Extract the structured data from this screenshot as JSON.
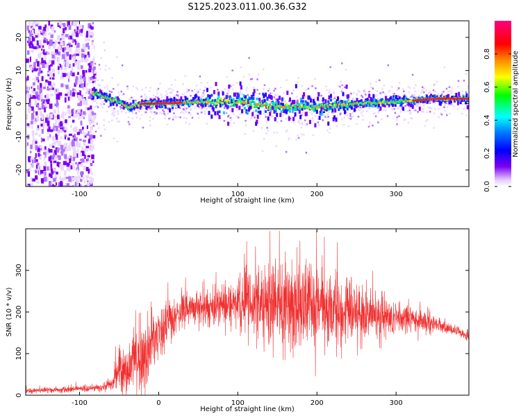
{
  "figure": {
    "title": "S125.2023.011.00.36.G32"
  },
  "chart_data": [
    {
      "type": "heatmap",
      "xlabel": "Height of straight line (km)",
      "ylabel": "Frequency (Hz)",
      "xlim": [
        -168,
        392
      ],
      "ylim": [
        -25,
        25
      ],
      "xticks": [
        -100,
        0,
        100,
        200,
        300
      ],
      "yticks": [
        -20,
        -10,
        0,
        10,
        20
      ],
      "ridge_frequency_hz": {
        "x": [
          -80,
          -70,
          -60,
          -50,
          -40,
          -30,
          -20,
          0,
          50,
          100,
          150,
          200,
          250,
          300,
          350,
          390
        ],
        "y": [
          3,
          2,
          1,
          0.5,
          -1,
          -0.5,
          0,
          0,
          0.5,
          0.5,
          -1,
          -1,
          0,
          0.5,
          1.5,
          1.5
        ]
      },
      "colorbar": {
        "label": "Normalized spectral amplitude",
        "range": [
          0,
          1
        ],
        "ticks": [
          0.0,
          0.2,
          0.4,
          0.6,
          0.8
        ],
        "tick_labels": [
          "0.0",
          "0.2",
          "0.4",
          "0.6",
          "0.8"
        ],
        "colormap": [
          "#f4e8ff",
          "#7a00f0",
          "#0000ff",
          "#00ffff",
          "#00ff00",
          "#ffff00",
          "#ff8c00",
          "#ff0000",
          "#ff0080"
        ]
      }
    },
    {
      "type": "line",
      "xlabel": "Height of straight line (km)",
      "ylabel": "SNR (10 * v/v)",
      "xlim": [
        -168,
        392
      ],
      "ylim": [
        0,
        400
      ],
      "xticks": [
        -100,
        0,
        100,
        200,
        300
      ],
      "yticks": [
        0,
        100,
        200,
        300
      ],
      "series_color": "#f03030",
      "envelope": {
        "x": [
          -168,
          -140,
          -100,
          -70,
          -60,
          -50,
          -45,
          -40,
          -30,
          -20,
          -10,
          0,
          10,
          20,
          30,
          40,
          60,
          80,
          100,
          120,
          150,
          170,
          180,
          200,
          220,
          250,
          280,
          300,
          320,
          340,
          360,
          380,
          392
        ],
        "center": [
          10,
          12,
          15,
          18,
          25,
          60,
          80,
          50,
          90,
          70,
          120,
          150,
          165,
          180,
          210,
          215,
          205,
          215,
          225,
          220,
          215,
          220,
          215,
          210,
          200,
          200,
          190,
          185,
          180,
          175,
          165,
          150,
          140
        ],
        "spread": [
          5,
          5,
          5,
          6,
          12,
          40,
          50,
          35,
          50,
          60,
          50,
          45,
          45,
          40,
          35,
          30,
          30,
          35,
          40,
          55,
          70,
          85,
          80,
          75,
          65,
          55,
          40,
          30,
          22,
          15,
          10,
          8,
          8
        ]
      }
    }
  ]
}
